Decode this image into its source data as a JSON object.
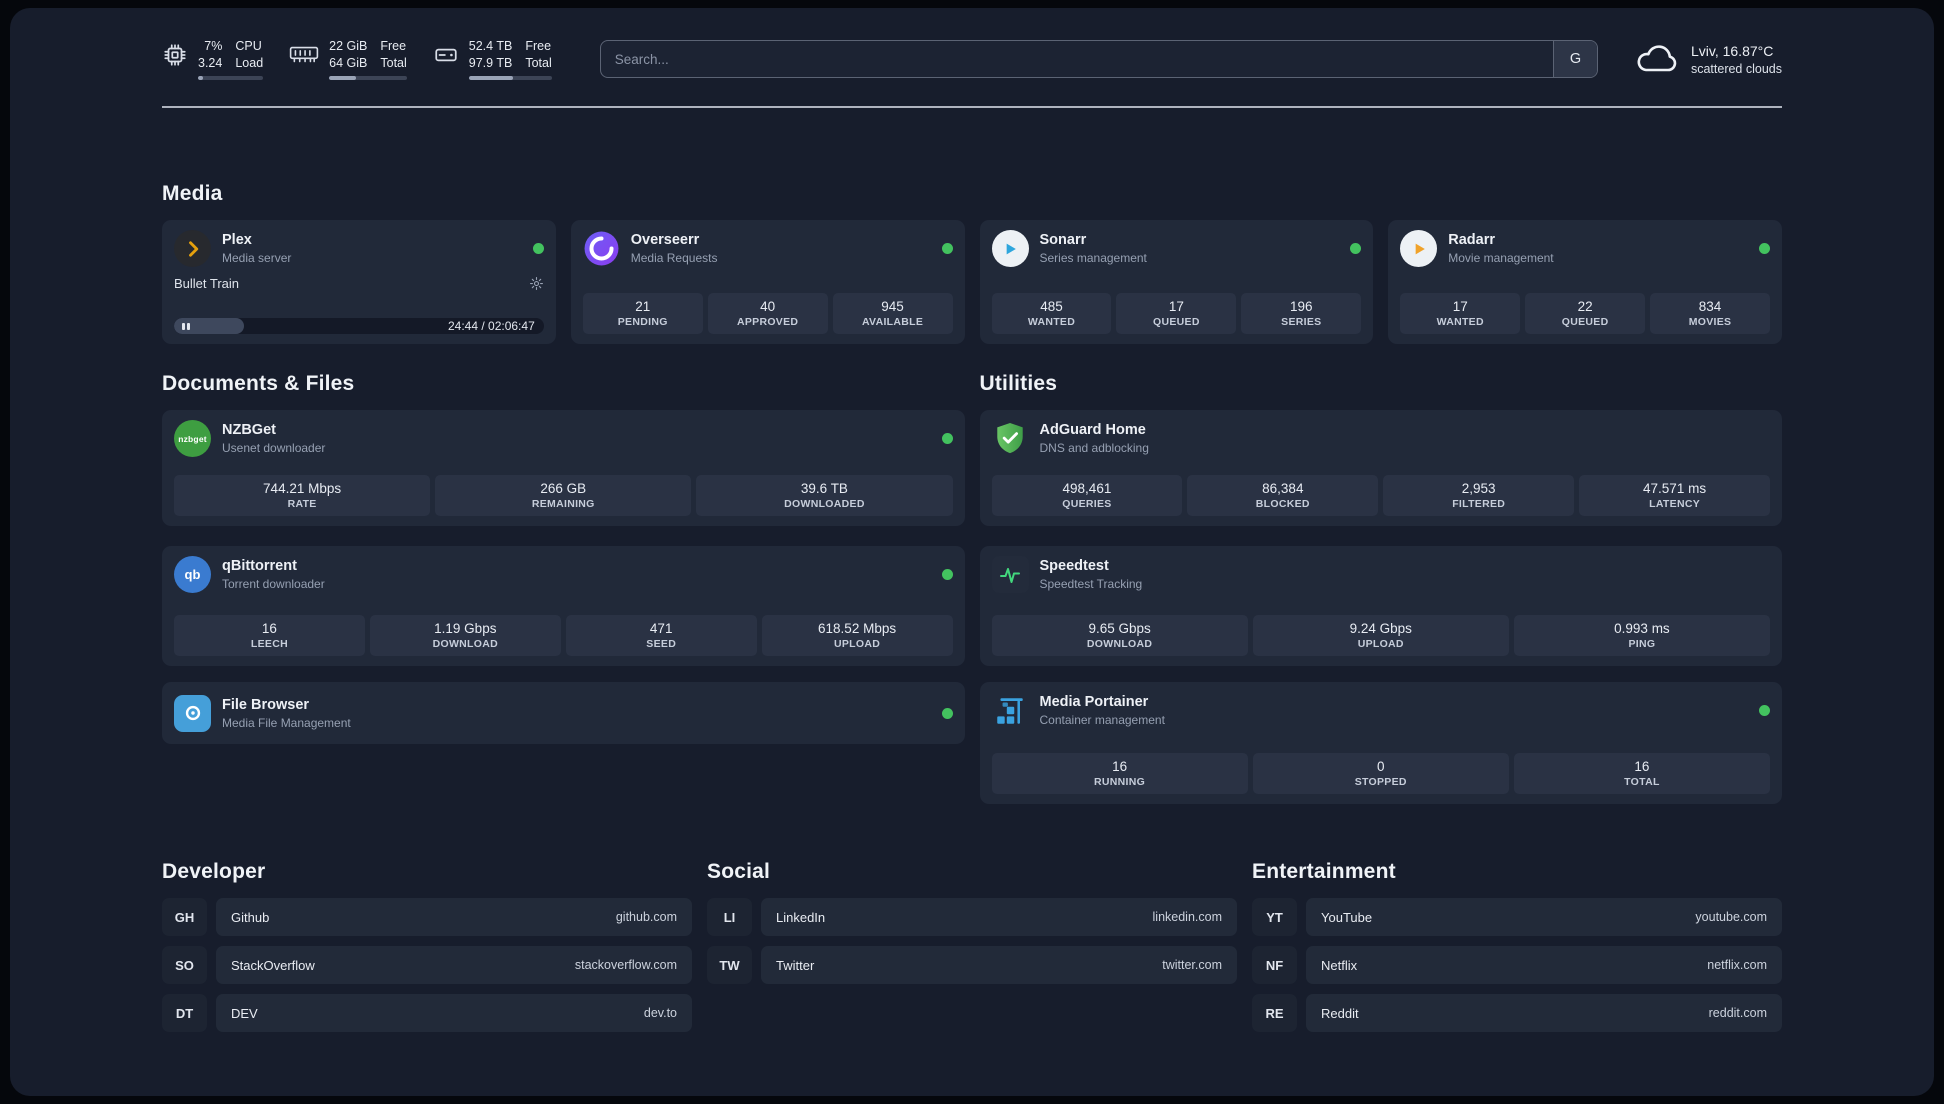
{
  "colors": {
    "background": "#171d2c",
    "card": "#212939",
    "tile": "#2a3244",
    "status_online": "#43c25f",
    "plex_accent": "#e5a00d",
    "text_primary": "#eef1f6",
    "text_muted": "#96a0b2"
  },
  "topbar": {
    "cpu": {
      "value_top": "7%",
      "value_bottom": "3.24",
      "label_top": "CPU",
      "label_bottom": "Load",
      "bar_percent": 7
    },
    "ram": {
      "value_top": "22 GiB",
      "value_bottom": "64 GiB",
      "label_top": "Free",
      "label_bottom": "Total",
      "bar_percent": 34
    },
    "disk": {
      "value_top": "52.4 TB",
      "value_bottom": "97.9 TB",
      "label_top": "Free",
      "label_bottom": "Total",
      "bar_percent": 53
    },
    "search": {
      "placeholder": "Search...",
      "engine_button": "G"
    },
    "weather": {
      "location": "Lviv, 16.87°C",
      "condition": "scattered clouds"
    }
  },
  "sections": {
    "media": "Media",
    "documents": "Documents & Files",
    "utilities": "Utilities",
    "developer": "Developer",
    "social": "Social",
    "entertainment": "Entertainment"
  },
  "apps": {
    "plex": {
      "name": "Plex",
      "desc": "Media server",
      "now_playing": "Bullet Train",
      "elapsed_total": "24:44 / 02:06:47",
      "progress_percent": 19
    },
    "overseerr": {
      "name": "Overseerr",
      "desc": "Media Requests",
      "stats": [
        {
          "value": "21",
          "label": "PENDING"
        },
        {
          "value": "40",
          "label": "APPROVED"
        },
        {
          "value": "945",
          "label": "AVAILABLE"
        }
      ]
    },
    "sonarr": {
      "name": "Sonarr",
      "desc": "Series management",
      "stats": [
        {
          "value": "485",
          "label": "WANTED"
        },
        {
          "value": "17",
          "label": "QUEUED"
        },
        {
          "value": "196",
          "label": "SERIES"
        }
      ]
    },
    "radarr": {
      "name": "Radarr",
      "desc": "Movie management",
      "stats": [
        {
          "value": "17",
          "label": "WANTED"
        },
        {
          "value": "22",
          "label": "QUEUED"
        },
        {
          "value": "834",
          "label": "MOVIES"
        }
      ]
    },
    "nzbget": {
      "name": "NZBGet",
      "desc": "Usenet downloader",
      "icon_text": "nzbget",
      "stats": [
        {
          "value": "744.21 Mbps",
          "label": "RATE"
        },
        {
          "value": "266 GB",
          "label": "REMAINING"
        },
        {
          "value": "39.6 TB",
          "label": "DOWNLOADED"
        }
      ]
    },
    "qbittorrent": {
      "name": "qBittorrent",
      "desc": "Torrent downloader",
      "icon_text": "qb",
      "stats": [
        {
          "value": "16",
          "label": "LEECH"
        },
        {
          "value": "1.19 Gbps",
          "label": "DOWNLOAD"
        },
        {
          "value": "471",
          "label": "SEED"
        },
        {
          "value": "618.52 Mbps",
          "label": "UPLOAD"
        }
      ]
    },
    "filebrowser": {
      "name": "File Browser",
      "desc": "Media File Management"
    },
    "adguard": {
      "name": "AdGuard Home",
      "desc": "DNS and adblocking",
      "stats": [
        {
          "value": "498,461",
          "label": "QUERIES"
        },
        {
          "value": "86,384",
          "label": "BLOCKED"
        },
        {
          "value": "2,953",
          "label": "FILTERED"
        },
        {
          "value": "47.571 ms",
          "label": "LATENCY"
        }
      ]
    },
    "speedtest": {
      "name": "Speedtest",
      "desc": "Speedtest Tracking",
      "stats": [
        {
          "value": "9.65 Gbps",
          "label": "DOWNLOAD"
        },
        {
          "value": "9.24 Gbps",
          "label": "UPLOAD"
        },
        {
          "value": "0.993 ms",
          "label": "PING"
        }
      ]
    },
    "portainer": {
      "name": "Media Portainer",
      "desc": "Container management",
      "stats": [
        {
          "value": "16",
          "label": "RUNNING"
        },
        {
          "value": "0",
          "label": "STOPPED"
        },
        {
          "value": "16",
          "label": "TOTAL"
        }
      ]
    }
  },
  "bookmarks": {
    "developer": [
      {
        "code": "GH",
        "name": "Github",
        "url": "github.com"
      },
      {
        "code": "SO",
        "name": "StackOverflow",
        "url": "stackoverflow.com"
      },
      {
        "code": "DT",
        "name": "DEV",
        "url": "dev.to"
      }
    ],
    "social": [
      {
        "code": "LI",
        "name": "LinkedIn",
        "url": "linkedin.com"
      },
      {
        "code": "TW",
        "name": "Twitter",
        "url": "twitter.com"
      }
    ],
    "entertainment": [
      {
        "code": "YT",
        "name": "YouTube",
        "url": "youtube.com"
      },
      {
        "code": "NF",
        "name": "Netflix",
        "url": "netflix.com"
      },
      {
        "code": "RE",
        "name": "Reddit",
        "url": "reddit.com"
      }
    ]
  }
}
